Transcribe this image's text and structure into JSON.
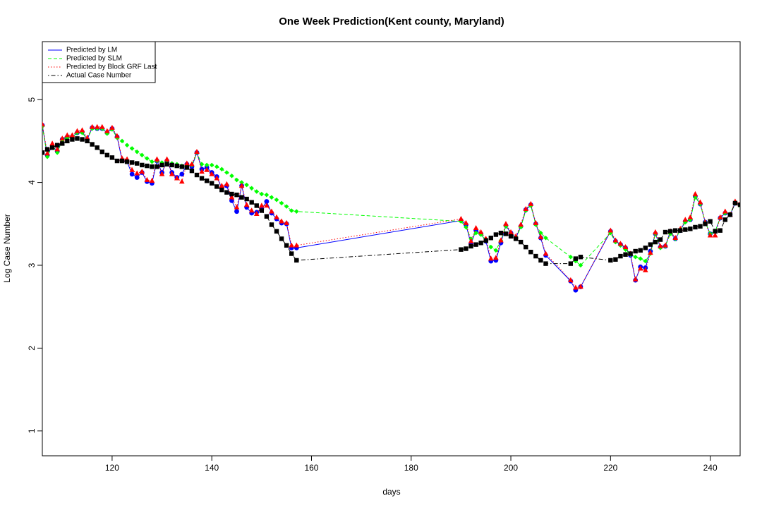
{
  "chart_data": {
    "type": "line",
    "title": "One Week Prediction(Kent county, Maryland)",
    "xlabel": "days",
    "ylabel": "Log Case Number",
    "xlim": [
      106,
      246
    ],
    "ylim": [
      0.7,
      5.7
    ],
    "xticks": [
      120,
      140,
      160,
      180,
      200,
      220,
      240
    ],
    "yticks": [
      1,
      2,
      3,
      4,
      5
    ],
    "grid": false,
    "legend_position": "top-left",
    "series": [
      {
        "name": "Predicted by LM",
        "color": "#0000ff",
        "line": "solid",
        "marker": "circle",
        "x": [
          106,
          107,
          108,
          109,
          110,
          111,
          112,
          113,
          114,
          115,
          116,
          117,
          118,
          119,
          120,
          121,
          122,
          123,
          124,
          125,
          126,
          127,
          128,
          129,
          130,
          131,
          132,
          133,
          134,
          135,
          136,
          137,
          138,
          139,
          140,
          141,
          142,
          143,
          144,
          145,
          146,
          147,
          148,
          149,
          150,
          151,
          152,
          153,
          154,
          155,
          156,
          157,
          190,
          191,
          192,
          193,
          194,
          195,
          196,
          197,
          198,
          199,
          200,
          201,
          202,
          203,
          204,
          205,
          206,
          207,
          212,
          213,
          214,
          220,
          221,
          222,
          223,
          224,
          225,
          226,
          227,
          228,
          229,
          230,
          231,
          232,
          233,
          234,
          235,
          236,
          237,
          238,
          239,
          240,
          241,
          242,
          243,
          244,
          245,
          246
        ],
        "y": [
          4.69,
          4.33,
          4.44,
          4.38,
          4.52,
          4.55,
          4.55,
          4.6,
          4.61,
          4.52,
          4.66,
          4.65,
          4.65,
          4.6,
          4.65,
          4.55,
          4.27,
          4.25,
          4.1,
          4.06,
          4.12,
          4.01,
          3.99,
          4.26,
          4.12,
          4.26,
          4.12,
          4.06,
          4.1,
          4.22,
          4.19,
          4.36,
          4.16,
          4.18,
          4.12,
          4.07,
          3.93,
          3.96,
          3.78,
          3.65,
          3.96,
          3.7,
          3.63,
          3.64,
          3.68,
          3.77,
          3.63,
          3.56,
          3.51,
          3.5,
          3.21,
          3.21,
          3.54,
          3.49,
          3.26,
          3.42,
          3.38,
          3.29,
          3.05,
          3.06,
          3.27,
          3.48,
          3.39,
          3.33,
          3.47,
          3.67,
          3.73,
          3.5,
          3.33,
          3.12,
          2.81,
          2.7,
          2.74,
          3.41,
          3.29,
          3.25,
          3.21,
          3.12,
          2.82,
          2.98,
          2.97,
          3.17,
          3.38,
          3.22,
          3.23,
          3.41,
          3.32,
          3.42,
          3.53,
          3.55,
          3.83,
          3.74,
          3.52,
          3.38,
          3.41,
          3.57,
          3.63,
          3.61,
          3.75,
          3.73
        ]
      },
      {
        "name": "Predicted by SLM",
        "color": "#00ff00",
        "line": "dashed",
        "marker": "diamond",
        "x": [
          106,
          107,
          108,
          109,
          110,
          111,
          112,
          113,
          114,
          115,
          116,
          117,
          118,
          119,
          120,
          121,
          122,
          123,
          124,
          125,
          126,
          127,
          128,
          129,
          130,
          131,
          132,
          133,
          134,
          135,
          136,
          137,
          138,
          139,
          140,
          141,
          142,
          143,
          144,
          145,
          146,
          147,
          148,
          149,
          150,
          151,
          152,
          153,
          154,
          155,
          156,
          157,
          190,
          191,
          192,
          193,
          194,
          195,
          196,
          197,
          198,
          199,
          200,
          201,
          202,
          203,
          204,
          205,
          206,
          207,
          212,
          213,
          214,
          220,
          221,
          222,
          223,
          224,
          225,
          226,
          227,
          228,
          229,
          230,
          231,
          232,
          233,
          234,
          235,
          236,
          237,
          238,
          239,
          240,
          241,
          242,
          243,
          244,
          245,
          246
        ],
        "y": [
          4.68,
          4.31,
          4.45,
          4.36,
          4.51,
          4.54,
          4.54,
          4.6,
          4.6,
          4.52,
          4.65,
          4.65,
          4.65,
          4.59,
          4.64,
          4.54,
          4.5,
          4.45,
          4.41,
          4.37,
          4.33,
          4.29,
          4.25,
          4.26,
          4.24,
          4.24,
          4.23,
          4.22,
          4.2,
          4.2,
          4.21,
          4.36,
          4.22,
          4.21,
          4.21,
          4.19,
          4.16,
          4.12,
          4.08,
          4.03,
          4.0,
          3.97,
          3.93,
          3.89,
          3.86,
          3.85,
          3.82,
          3.79,
          3.75,
          3.71,
          3.66,
          3.65,
          3.53,
          3.46,
          3.32,
          3.39,
          3.37,
          3.3,
          3.22,
          3.18,
          3.3,
          3.47,
          3.38,
          3.32,
          3.46,
          3.66,
          3.72,
          3.49,
          3.39,
          3.33,
          3.1,
          3.05,
          3.0,
          3.39,
          3.28,
          3.24,
          3.19,
          3.13,
          3.1,
          3.08,
          3.05,
          3.14,
          3.38,
          3.21,
          3.23,
          3.38,
          3.32,
          3.42,
          3.52,
          3.55,
          3.82,
          3.74,
          3.52,
          3.38,
          3.41,
          3.57,
          3.63,
          3.62,
          3.75,
          3.72
        ]
      },
      {
        "name": "Predicted by Block GRF Last",
        "color": "#ff0000",
        "line": "dotted",
        "marker": "triangle",
        "x": [
          106,
          107,
          108,
          109,
          110,
          111,
          112,
          113,
          114,
          115,
          116,
          117,
          118,
          119,
          120,
          121,
          122,
          123,
          124,
          125,
          126,
          127,
          128,
          129,
          130,
          131,
          132,
          133,
          134,
          135,
          136,
          137,
          138,
          139,
          140,
          141,
          142,
          143,
          144,
          145,
          146,
          147,
          148,
          149,
          150,
          151,
          152,
          153,
          154,
          155,
          156,
          157,
          190,
          191,
          192,
          193,
          194,
          195,
          196,
          197,
          198,
          199,
          200,
          201,
          202,
          203,
          204,
          205,
          206,
          207,
          212,
          213,
          214,
          220,
          221,
          222,
          223,
          224,
          225,
          226,
          227,
          228,
          229,
          230,
          231,
          232,
          233,
          234,
          235,
          236,
          237,
          238,
          239,
          240,
          241,
          242,
          243,
          244,
          245,
          246
        ],
        "y": [
          4.7,
          4.35,
          4.47,
          4.4,
          4.53,
          4.57,
          4.57,
          4.62,
          4.63,
          4.54,
          4.67,
          4.67,
          4.67,
          4.62,
          4.66,
          4.56,
          4.29,
          4.28,
          4.15,
          4.11,
          4.13,
          4.03,
          4.02,
          4.28,
          4.1,
          4.28,
          4.1,
          4.05,
          4.01,
          4.23,
          4.22,
          4.37,
          4.13,
          4.15,
          4.1,
          4.05,
          3.96,
          3.98,
          3.82,
          3.7,
          3.96,
          3.73,
          3.66,
          3.62,
          3.72,
          3.72,
          3.65,
          3.58,
          3.53,
          3.51,
          3.24,
          3.24,
          3.56,
          3.51,
          3.29,
          3.45,
          3.4,
          3.32,
          3.08,
          3.09,
          3.3,
          3.5,
          3.4,
          3.35,
          3.49,
          3.68,
          3.74,
          3.51,
          3.34,
          3.14,
          2.82,
          2.73,
          2.74,
          3.42,
          3.3,
          3.26,
          3.22,
          3.14,
          2.83,
          2.96,
          2.94,
          3.15,
          3.4,
          3.23,
          3.24,
          3.41,
          3.33,
          3.44,
          3.55,
          3.58,
          3.86,
          3.76,
          3.52,
          3.36,
          3.36,
          3.58,
          3.65,
          3.61,
          3.77,
          3.74
        ]
      },
      {
        "name": "Actual Case Number",
        "color": "#000000",
        "line": "dotdash",
        "marker": "square",
        "x": [
          106,
          107,
          108,
          109,
          110,
          111,
          112,
          113,
          114,
          115,
          116,
          117,
          118,
          119,
          120,
          121,
          122,
          123,
          124,
          125,
          126,
          127,
          128,
          129,
          130,
          131,
          132,
          133,
          134,
          135,
          136,
          137,
          138,
          139,
          140,
          141,
          142,
          143,
          144,
          145,
          146,
          147,
          148,
          149,
          150,
          151,
          152,
          153,
          154,
          155,
          156,
          157,
          190,
          191,
          192,
          193,
          194,
          195,
          196,
          197,
          198,
          199,
          200,
          201,
          202,
          203,
          204,
          205,
          206,
          207,
          212,
          213,
          214,
          220,
          221,
          222,
          223,
          224,
          225,
          226,
          227,
          228,
          229,
          230,
          231,
          232,
          233,
          234,
          235,
          236,
          237,
          238,
          239,
          240,
          241,
          242,
          243,
          244,
          245,
          246
        ],
        "y": [
          4.36,
          4.4,
          4.42,
          4.45,
          4.47,
          4.5,
          4.52,
          4.53,
          4.52,
          4.5,
          4.46,
          4.42,
          4.37,
          4.33,
          4.3,
          4.26,
          4.26,
          4.25,
          4.24,
          4.23,
          4.21,
          4.2,
          4.19,
          4.19,
          4.21,
          4.22,
          4.21,
          4.2,
          4.19,
          4.18,
          4.14,
          4.09,
          4.05,
          4.02,
          3.99,
          3.95,
          3.91,
          3.88,
          3.86,
          3.85,
          3.82,
          3.8,
          3.76,
          3.72,
          3.66,
          3.59,
          3.49,
          3.41,
          3.32,
          3.24,
          3.14,
          3.06,
          3.19,
          3.2,
          3.23,
          3.25,
          3.27,
          3.3,
          3.33,
          3.37,
          3.39,
          3.38,
          3.35,
          3.32,
          3.28,
          3.22,
          3.16,
          3.11,
          3.06,
          3.02,
          3.02,
          3.08,
          3.1,
          3.06,
          3.07,
          3.11,
          3.13,
          3.14,
          3.17,
          3.18,
          3.21,
          3.25,
          3.28,
          3.31,
          3.4,
          3.41,
          3.42,
          3.42,
          3.43,
          3.44,
          3.46,
          3.47,
          3.5,
          3.53,
          3.41,
          3.42,
          3.55,
          3.61,
          3.75,
          3.73
        ]
      }
    ]
  }
}
